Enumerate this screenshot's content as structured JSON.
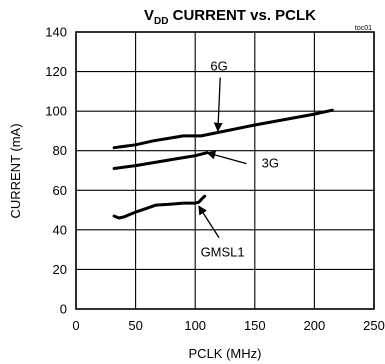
{
  "chart_data": {
    "type": "line",
    "title_parts": {
      "main": "V",
      "subscript": "DD",
      "rest": " CURRENT vs. PCLK"
    },
    "figure_tag": "toc01",
    "xlabel": "PCLK (MHz)",
    "ylabel": "CURRENT (mA)",
    "xlim": [
      0,
      250
    ],
    "ylim": [
      0,
      140
    ],
    "xticks": [
      "0",
      "50",
      "100",
      "150",
      "200",
      "250"
    ],
    "yticks": [
      "0",
      "20",
      "40",
      "60",
      "80",
      "100",
      "120",
      "140"
    ],
    "grid": true,
    "line_color": "#000000",
    "grid_color": "#000000",
    "series": [
      {
        "name": "6G",
        "points": [
          {
            "x": 32,
            "y": 81.5
          },
          {
            "x": 50,
            "y": 83
          },
          {
            "x": 65,
            "y": 85
          },
          {
            "x": 80,
            "y": 86.5
          },
          {
            "x": 90,
            "y": 87.5
          },
          {
            "x": 105,
            "y": 87.5
          },
          {
            "x": 150,
            "y": 93
          },
          {
            "x": 200,
            "y": 98.5
          },
          {
            "x": 215,
            "y": 100.5
          }
        ]
      },
      {
        "name": "3G",
        "points": [
          {
            "x": 32,
            "y": 71
          },
          {
            "x": 50,
            "y": 72.5
          },
          {
            "x": 70,
            "y": 74.5
          },
          {
            "x": 90,
            "y": 76.5
          },
          {
            "x": 100,
            "y": 77.5
          },
          {
            "x": 110,
            "y": 79
          }
        ]
      },
      {
        "name": "GMSL1",
        "points": [
          {
            "x": 32,
            "y": 47
          },
          {
            "x": 36,
            "y": 46
          },
          {
            "x": 40,
            "y": 46.5
          },
          {
            "x": 50,
            "y": 49
          },
          {
            "x": 60,
            "y": 51
          },
          {
            "x": 67,
            "y": 52.5
          },
          {
            "x": 80,
            "y": 53
          },
          {
            "x": 90,
            "y": 53.5
          },
          {
            "x": 100,
            "y": 53.5
          },
          {
            "x": 103,
            "y": 54
          },
          {
            "x": 106,
            "y": 56
          },
          {
            "x": 108,
            "y": 57
          }
        ]
      }
    ],
    "annotations": [
      {
        "text": "6G",
        "label": {
          "x": 120,
          "y": 123
        },
        "arrow_from": {
          "x": 121,
          "y": 117
        },
        "arrow_to": {
          "x": 119,
          "y": 90
        }
      },
      {
        "text": "3G",
        "label": {
          "x": 163,
          "y": 74
        },
        "arrow_from": {
          "x": 143,
          "y": 73.5
        },
        "arrow_to": {
          "x": 110,
          "y": 79
        }
      },
      {
        "text": "GMSL1",
        "label": {
          "x": 123,
          "y": 29
        },
        "arrow_from": {
          "x": 120,
          "y": 36
        },
        "arrow_to": {
          "x": 103,
          "y": 52
        }
      }
    ]
  }
}
